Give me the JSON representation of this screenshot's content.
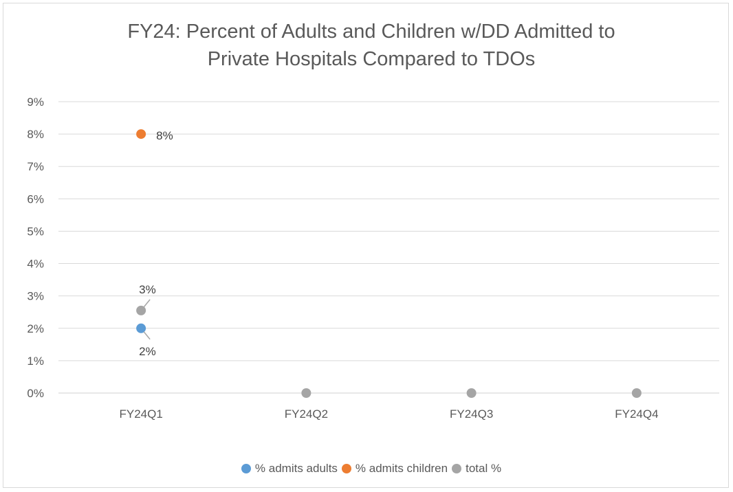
{
  "chart_data": {
    "type": "line",
    "title_lines": [
      "FY24: Percent of Adults and Children w/DD Admitted to",
      "Private Hospitals Compared to TDOs"
    ],
    "categories": [
      "FY24Q1",
      "FY24Q2",
      "FY24Q3",
      "FY24Q4"
    ],
    "y_ticks": [
      "0%",
      "1%",
      "2%",
      "3%",
      "4%",
      "5%",
      "6%",
      "7%",
      "8%",
      "9%"
    ],
    "ylim": [
      0,
      9
    ],
    "grid": true,
    "legend_position": "bottom",
    "series": [
      {
        "name": "% admits adults",
        "color": "#5B9BD5",
        "values": [
          2,
          null,
          null,
          null
        ],
        "labels": [
          "2%",
          null,
          null,
          null
        ]
      },
      {
        "name": "% admits children",
        "color": "#ED7D31",
        "values": [
          8,
          null,
          null,
          null
        ],
        "labels": [
          "8%",
          null,
          null,
          null
        ]
      },
      {
        "name": "total %",
        "color": "#A5A5A5",
        "values": [
          2.55,
          0,
          0,
          0
        ],
        "labels": [
          "3%",
          null,
          null,
          null
        ]
      }
    ]
  }
}
